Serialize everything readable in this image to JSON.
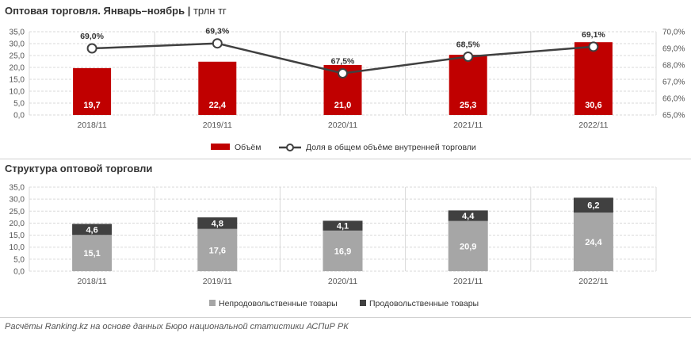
{
  "header": {
    "title": "Оптовая торговля. Январь–ноябрь",
    "unit": "трлн тг"
  },
  "section2": {
    "title": "Структура оптовой торговли"
  },
  "source": "Расчёты Ranking.kz на основе данных Бюро национальной статистики АСПиР РК",
  "colors": {
    "volume": "#c00000",
    "share_line": "#404040",
    "non_food": "#a6a6a6",
    "food": "#404040"
  },
  "chart_data": [
    {
      "type": "bar",
      "categories": [
        "2018/11",
        "2019/11",
        "2020/11",
        "2021/11",
        "2022/11"
      ],
      "series": [
        {
          "name": "Объём",
          "type": "bar",
          "axis": "left",
          "values": [
            19.7,
            22.4,
            21.0,
            25.3,
            30.6
          ],
          "labels": [
            "19,7",
            "22,4",
            "21,0",
            "25,3",
            "30,6"
          ]
        },
        {
          "name": "Доля в общем объёме внутренней торговли",
          "type": "line",
          "axis": "right",
          "values": [
            69.0,
            69.3,
            67.5,
            68.5,
            69.1
          ],
          "labels": [
            "69,0%",
            "69,3%",
            "67,5%",
            "68,5%",
            "69,1%"
          ]
        }
      ],
      "ylim": [
        0,
        35
      ],
      "yticks": [
        "0,0",
        "5,0",
        "10,0",
        "15,0",
        "20,0",
        "25,0",
        "30,0",
        "35,0"
      ],
      "y2lim": [
        65,
        70
      ],
      "y2ticks": [
        "65,0%",
        "66,0%",
        "67,0%",
        "68,0%",
        "69,0%",
        "70,0%"
      ],
      "grid": true,
      "legend_position": "bottom"
    },
    {
      "type": "bar",
      "stacked": true,
      "categories": [
        "2018/11",
        "2019/11",
        "2020/11",
        "2021/11",
        "2022/11"
      ],
      "series": [
        {
          "name": "Непродовольственные товары",
          "values": [
            15.1,
            17.6,
            16.9,
            20.9,
            24.4
          ],
          "labels": [
            "15,1",
            "17,6",
            "16,9",
            "20,9",
            "24,4"
          ]
        },
        {
          "name": "Продовольственные товары",
          "values": [
            4.6,
            4.8,
            4.1,
            4.4,
            6.2
          ],
          "labels": [
            "4,6",
            "4,8",
            "4,1",
            "4,4",
            "6,2"
          ]
        }
      ],
      "ylim": [
        0,
        35
      ],
      "yticks": [
        "0,0",
        "5,0",
        "10,0",
        "15,0",
        "20,0",
        "25,0",
        "30,0",
        "35,0"
      ],
      "grid": true,
      "legend_position": "bottom"
    }
  ]
}
